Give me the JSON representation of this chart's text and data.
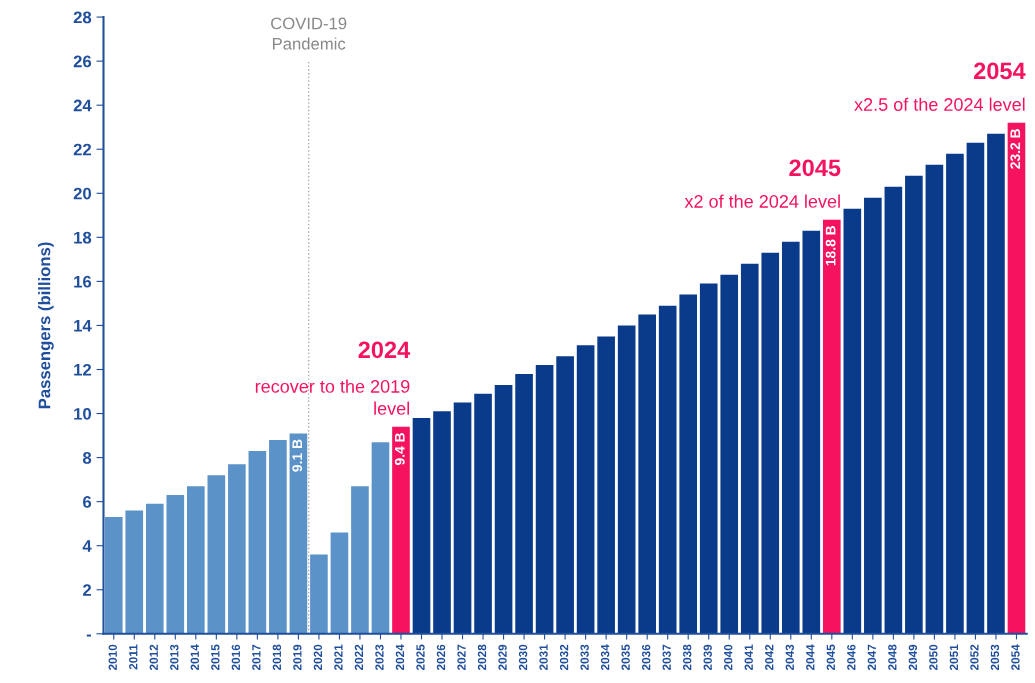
{
  "chart_data": {
    "type": "bar",
    "ylabel": "Passengers (billions)",
    "x": [
      2010,
      2011,
      2012,
      2013,
      2014,
      2015,
      2016,
      2017,
      2018,
      2019,
      2020,
      2021,
      2022,
      2023,
      2024,
      2025,
      2026,
      2027,
      2028,
      2029,
      2030,
      2031,
      2032,
      2033,
      2034,
      2035,
      2036,
      2037,
      2038,
      2039,
      2040,
      2041,
      2042,
      2043,
      2044,
      2045,
      2046,
      2047,
      2048,
      2049,
      2050,
      2051,
      2052,
      2053,
      2054
    ],
    "values": [
      5.3,
      5.6,
      5.9,
      6.3,
      6.7,
      7.2,
      7.7,
      8.3,
      8.8,
      9.1,
      3.6,
      4.6,
      6.7,
      8.7,
      9.4,
      9.8,
      10.1,
      10.5,
      10.9,
      11.3,
      11.8,
      12.2,
      12.6,
      13.1,
      13.5,
      14.0,
      14.5,
      14.9,
      15.4,
      15.9,
      16.3,
      16.8,
      17.3,
      17.8,
      18.3,
      18.8,
      19.3,
      19.8,
      20.3,
      20.8,
      21.3,
      21.8,
      22.3,
      22.7,
      23.2
    ],
    "colors": [
      "#5b93c9",
      "#5b93c9",
      "#5b93c9",
      "#5b93c9",
      "#5b93c9",
      "#5b93c9",
      "#5b93c9",
      "#5b93c9",
      "#5b93c9",
      "#5b93c9",
      "#5b93c9",
      "#5b93c9",
      "#5b93c9",
      "#5b93c9",
      "#f5135f",
      "#0a3a8a",
      "#0a3a8a",
      "#0a3a8a",
      "#0a3a8a",
      "#0a3a8a",
      "#0a3a8a",
      "#0a3a8a",
      "#0a3a8a",
      "#0a3a8a",
      "#0a3a8a",
      "#0a3a8a",
      "#0a3a8a",
      "#0a3a8a",
      "#0a3a8a",
      "#0a3a8a",
      "#0a3a8a",
      "#0a3a8a",
      "#0a3a8a",
      "#0a3a8a",
      "#0a3a8a",
      "#f5135f",
      "#0a3a8a",
      "#0a3a8a",
      "#0a3a8a",
      "#0a3a8a",
      "#0a3a8a",
      "#0a3a8a",
      "#0a3a8a",
      "#0a3a8a",
      "#f5135f"
    ],
    "value_labels": [
      null,
      null,
      null,
      null,
      null,
      null,
      null,
      null,
      null,
      "9.1 B",
      null,
      null,
      null,
      null,
      "9.4 B",
      null,
      null,
      null,
      null,
      null,
      null,
      null,
      null,
      null,
      null,
      null,
      null,
      null,
      null,
      null,
      null,
      null,
      null,
      null,
      null,
      "18.8 B",
      null,
      null,
      null,
      null,
      null,
      null,
      null,
      null,
      "23.2 B"
    ],
    "xlim": [
      2009.5,
      2054.5
    ],
    "xticks": [
      2010,
      2011,
      2012,
      2013,
      2014,
      2015,
      2016,
      2017,
      2018,
      2019,
      2020,
      2021,
      2022,
      2023,
      2024,
      2025,
      2026,
      2027,
      2028,
      2029,
      2030,
      2031,
      2032,
      2033,
      2034,
      2035,
      2036,
      2037,
      2038,
      2039,
      2040,
      2041,
      2042,
      2043,
      2044,
      2045,
      2046,
      2047,
      2048,
      2049,
      2050,
      2051,
      2052,
      2053,
      2054
    ],
    "ylim": [
      0,
      28
    ],
    "yticks": [
      {
        "value": 0,
        "label": "-"
      },
      2,
      4,
      6,
      8,
      10,
      12,
      14,
      16,
      18,
      20,
      22,
      24,
      26,
      28
    ],
    "grid": false,
    "ref_lines": [
      {
        "axis": "x",
        "value": 2019.5,
        "label": "COVID-19\nPandemic",
        "color": "#aaaaaa",
        "line_style": "dotted"
      }
    ],
    "annotations": [
      {
        "text": "2024",
        "x": 2024,
        "y": 9.4
      },
      {
        "text": "recover to the 2019\nlevel",
        "x": 2024,
        "y": 9.4
      },
      {
        "text": "2045",
        "x": 2045,
        "y": 18.8
      },
      {
        "text": "x2 of the 2024 level",
        "x": 2045,
        "y": 18.8
      },
      {
        "text": "2054",
        "x": 2054,
        "y": 23.2
      },
      {
        "text": "x2.5 of the 2024 level",
        "x": 2054,
        "y": 23.2
      }
    ]
  }
}
